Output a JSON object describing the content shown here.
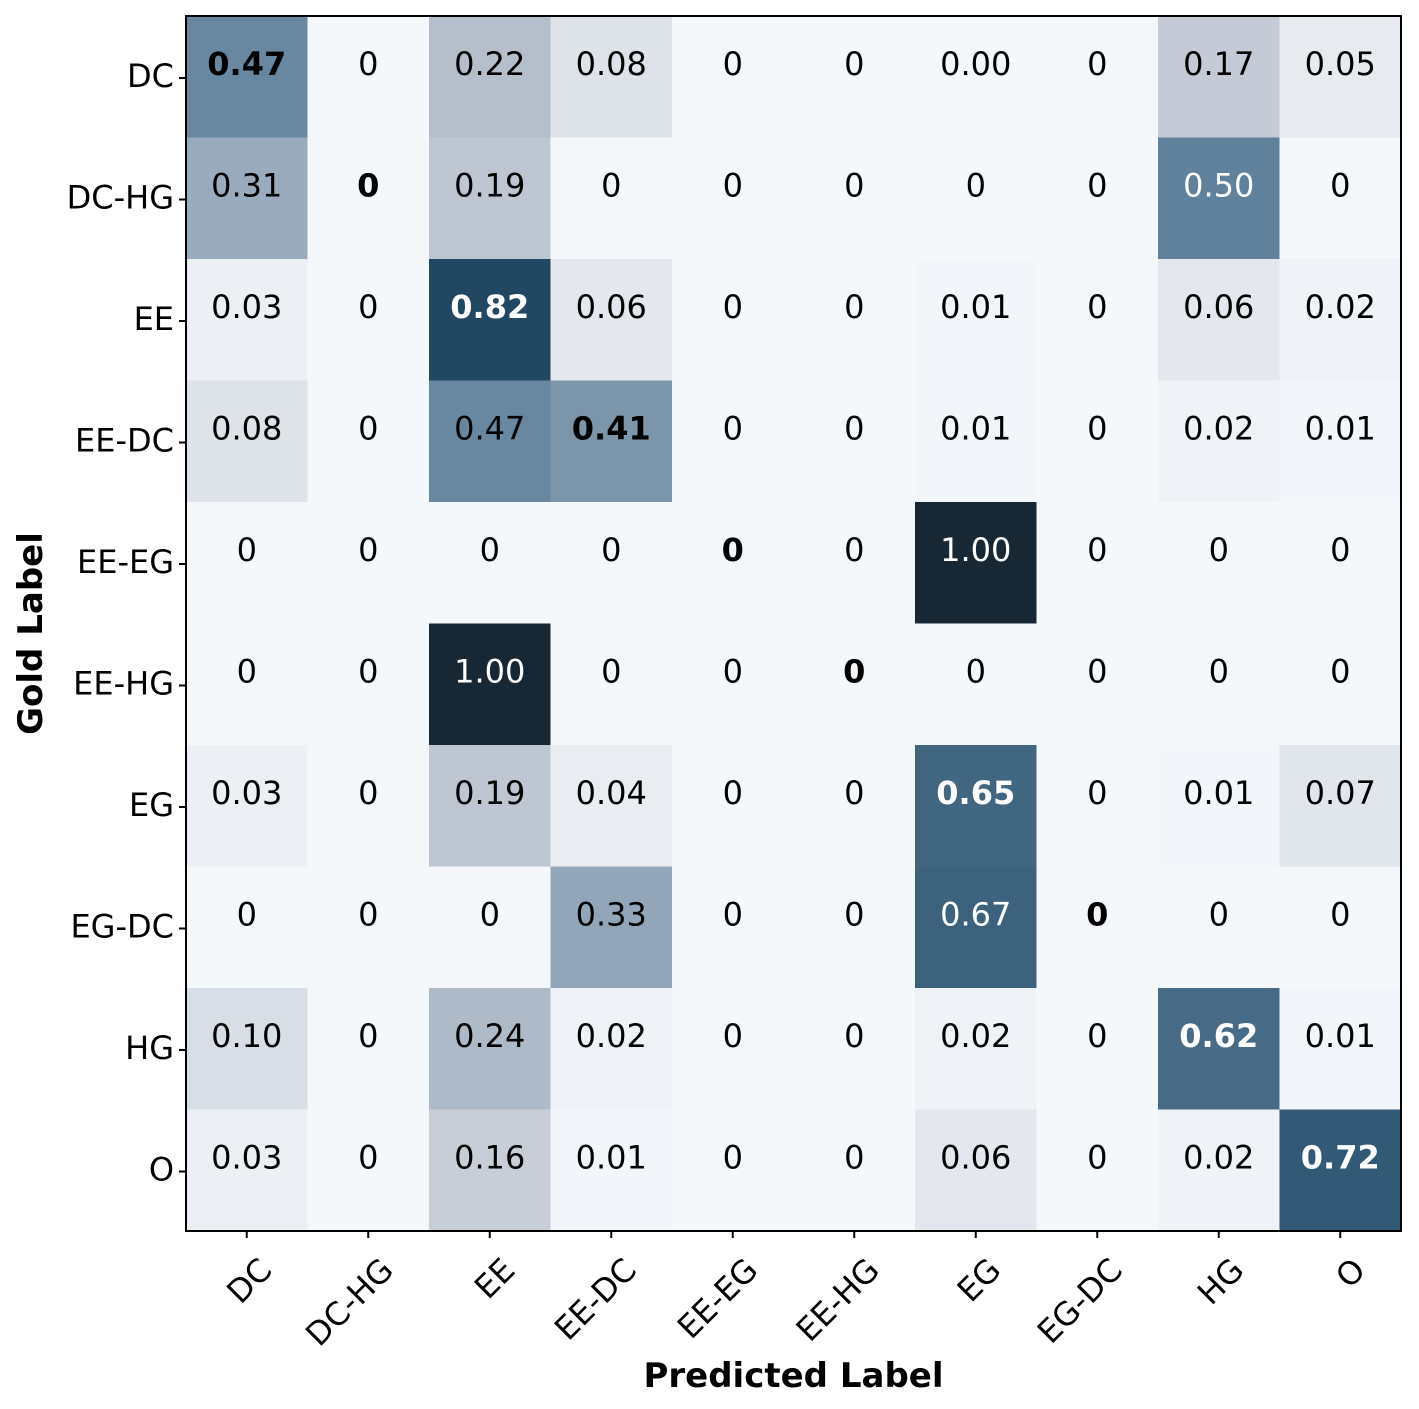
{
  "chart_data": {
    "type": "heatmap",
    "xlabel": "Predicted Label",
    "ylabel": "Gold Label",
    "x_categories": [
      "DC",
      "DC-HG",
      "EE",
      "EE-DC",
      "EE-EG",
      "EE-HG",
      "EG",
      "EG-DC",
      "HG",
      "O"
    ],
    "y_categories": [
      "DC",
      "DC-HG",
      "EE",
      "EE-DC",
      "EE-EG",
      "EE-HG",
      "EG",
      "EG-DC",
      "HG",
      "O"
    ],
    "cell_labels": [
      [
        "0.47",
        "0",
        "0.22",
        "0.08",
        "0",
        "0",
        "0.00",
        "0",
        "0.17",
        "0.05"
      ],
      [
        "0.31",
        "0",
        "0.19",
        "0",
        "0",
        "0",
        "0",
        "0",
        "0.50",
        "0"
      ],
      [
        "0.03",
        "0",
        "0.82",
        "0.06",
        "0",
        "0",
        "0.01",
        "0",
        "0.06",
        "0.02"
      ],
      [
        "0.08",
        "0",
        "0.47",
        "0.41",
        "0",
        "0",
        "0.01",
        "0",
        "0.02",
        "0.01"
      ],
      [
        "0",
        "0",
        "0",
        "0",
        "0",
        "0",
        "1.00",
        "0",
        "0",
        "0"
      ],
      [
        "0",
        "0",
        "1.00",
        "0",
        "0",
        "0",
        "0",
        "0",
        "0",
        "0"
      ],
      [
        "0.03",
        "0",
        "0.19",
        "0.04",
        "0",
        "0",
        "0.65",
        "0",
        "0.01",
        "0.07"
      ],
      [
        "0",
        "0",
        "0",
        "0.33",
        "0",
        "0",
        "0.67",
        "0",
        "0",
        "0"
      ],
      [
        "0.10",
        "0",
        "0.24",
        "0.02",
        "0",
        "0",
        "0.02",
        "0",
        "0.62",
        "0.01"
      ],
      [
        "0.03",
        "0",
        "0.16",
        "0.01",
        "0",
        "0",
        "0.06",
        "0",
        "0.02",
        "0.72"
      ]
    ],
    "values": [
      [
        0.47,
        0,
        0.22,
        0.08,
        0,
        0,
        0.0,
        0,
        0.17,
        0.05
      ],
      [
        0.31,
        0,
        0.19,
        0,
        0,
        0,
        0,
        0,
        0.5,
        0
      ],
      [
        0.03,
        0,
        0.82,
        0.06,
        0,
        0,
        0.01,
        0,
        0.06,
        0.02
      ],
      [
        0.08,
        0,
        0.47,
        0.41,
        0,
        0,
        0.01,
        0,
        0.02,
        0.01
      ],
      [
        0,
        0,
        0,
        0,
        0,
        0,
        1.0,
        0,
        0,
        0
      ],
      [
        0,
        0,
        1.0,
        0,
        0,
        0,
        0,
        0,
        0,
        0
      ],
      [
        0.03,
        0,
        0.19,
        0.04,
        0,
        0,
        0.65,
        0,
        0.01,
        0.07
      ],
      [
        0,
        0,
        0,
        0.33,
        0,
        0,
        0.67,
        0,
        0,
        0
      ],
      [
        0.1,
        0,
        0.24,
        0.02,
        0,
        0,
        0.02,
        0,
        0.62,
        0.01
      ],
      [
        0.03,
        0,
        0.16,
        0.01,
        0,
        0,
        0.06,
        0,
        0.02,
        0.72
      ]
    ],
    "bold_cells": "diagonal",
    "colorscale": {
      "low": "#f5f8fb",
      "high": "#172733",
      "stops": [
        {
          "value": 0.0,
          "color": "#f5f8fb"
        },
        {
          "value": 0.2,
          "color": "#bbc3cf"
        },
        {
          "value": 0.5,
          "color": "#5f819c"
        },
        {
          "value": 0.8,
          "color": "#224a67"
        },
        {
          "value": 1.0,
          "color": "#172733"
        }
      ]
    },
    "text_colors": {
      "dark": "#000000",
      "light": "#ffffff"
    },
    "grid": false,
    "vmin": 0,
    "vmax": 1
  }
}
